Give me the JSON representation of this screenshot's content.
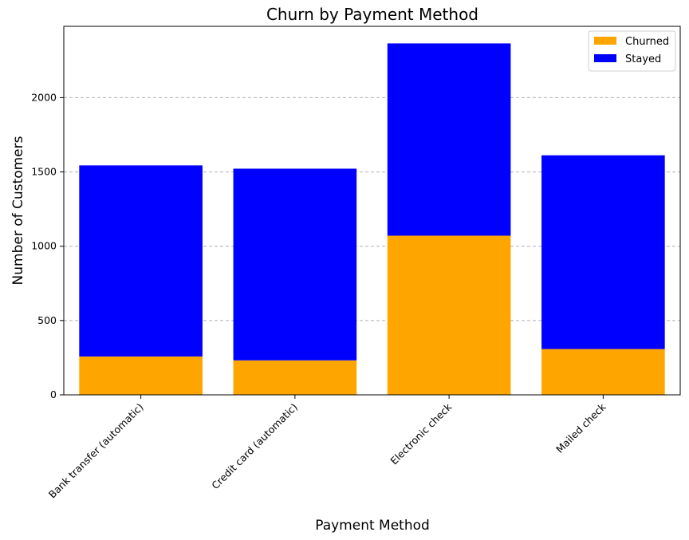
{
  "chart_data": {
    "type": "bar",
    "stacked": true,
    "title": "Churn by Payment Method",
    "xlabel": "Payment Method",
    "ylabel": "Number of Customers",
    "categories": [
      "Bank transfer (automatic)",
      "Credit card (automatic)",
      "Electronic check",
      "Mailed check"
    ],
    "series": [
      {
        "name": "Churned",
        "color": "#ffa500",
        "values": [
          258,
          232,
          1071,
          308
        ]
      },
      {
        "name": "Stayed",
        "color": "#0000ff",
        "values": [
          1286,
          1290,
          1294,
          1304
        ]
      }
    ],
    "ylim": [
      0,
      2480
    ],
    "yticks": [
      0,
      500,
      1000,
      1500,
      2000
    ],
    "grid": "y-dashed",
    "legend_position": "top-right"
  }
}
